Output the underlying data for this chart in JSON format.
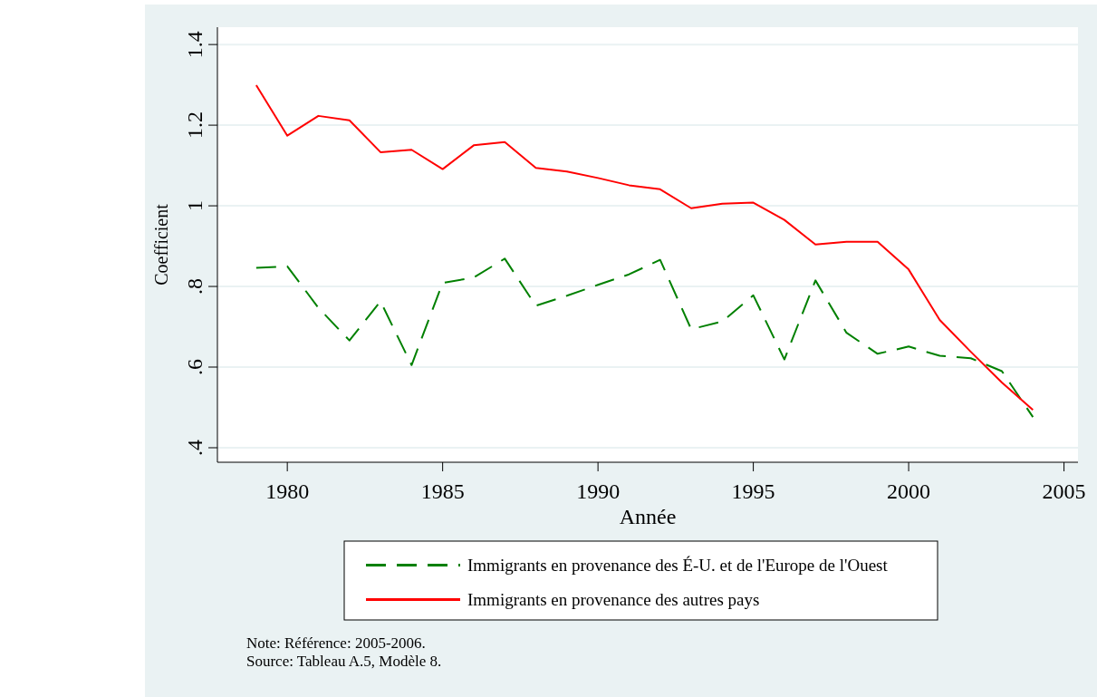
{
  "chart_data": {
    "type": "line",
    "x": [
      1979,
      1980,
      1981,
      1982,
      1983,
      1984,
      1985,
      1986,
      1987,
      1988,
      1989,
      1990,
      1991,
      1992,
      1993,
      1994,
      1995,
      1996,
      1997,
      1998,
      1999,
      2000,
      2001,
      2002,
      2003,
      2004
    ],
    "series": [
      {
        "name": "Immigrants en provenance des É-U. et de l'Europe de l'Ouest",
        "color": "#008000",
        "line_style": "dashed",
        "values": [
          0.846,
          0.85,
          0.747,
          0.666,
          0.763,
          0.605,
          0.809,
          0.822,
          0.869,
          0.752,
          0.777,
          0.804,
          0.83,
          0.866,
          0.694,
          0.713,
          0.778,
          0.619,
          0.815,
          0.685,
          0.633,
          0.651,
          0.628,
          0.622,
          0.59,
          0.476
        ]
      },
      {
        "name": "Immigrants en provenance des autres pays",
        "color": "#ff0000",
        "line_style": "solid",
        "values": [
          1.299,
          1.174,
          1.223,
          1.212,
          1.133,
          1.139,
          1.091,
          1.15,
          1.158,
          1.094,
          1.085,
          1.069,
          1.051,
          1.041,
          0.994,
          1.005,
          1.008,
          0.965,
          0.904,
          0.911,
          0.911,
          0.842,
          0.717,
          0.638,
          0.562,
          0.494
        ]
      }
    ],
    "xlabel": "Année",
    "ylabel": "Coefficient",
    "xlim": [
      1977.75,
      2005.45
    ],
    "xticks": [
      1980,
      1985,
      1990,
      1995,
      2000,
      2005
    ],
    "ylim": [
      0.364,
      1.443
    ],
    "yticks": [
      {
        "value": 0.4,
        "label": ".4"
      },
      {
        "value": 0.6,
        "label": ".6"
      },
      {
        "value": 0.8,
        "label": ".8"
      },
      {
        "value": 1,
        "label": "1"
      },
      {
        "value": 1.2,
        "label": "1.2"
      },
      {
        "value": 1.4,
        "label": "1.4"
      }
    ],
    "grid": "y",
    "legend": "bottom",
    "annotations": [
      "Note: Référence: 2005-2006.",
      "Source: Tableau A.5, Modèle 8."
    ]
  }
}
